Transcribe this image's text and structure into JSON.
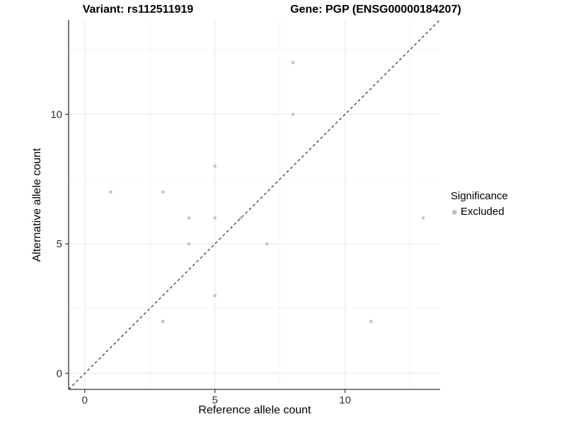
{
  "chart_data": {
    "type": "scatter",
    "title_left": "Variant: rs112511919",
    "title_right": "Gene: PGP (ENSG00000184207)",
    "xlabel": "Reference allele count",
    "ylabel": "Alternative allele count",
    "xlim": [
      -0.62,
      13.65
    ],
    "ylim": [
      -0.62,
      13.65
    ],
    "xticks": [
      0,
      5,
      10
    ],
    "yticks": [
      0,
      5,
      10
    ],
    "minor_ticks": [
      2.5,
      7.5,
      12.5
    ],
    "grid": true,
    "legend_position": "right",
    "identity_line": {
      "style": "dashed",
      "from": [
        -0.62,
        -0.62
      ],
      "to": [
        13.65,
        13.65
      ],
      "color": "#1a1a1a"
    },
    "series": [
      {
        "name": "Excluded",
        "color": "#c2c2c2",
        "points": [
          [
            1,
            7
          ],
          [
            3,
            2
          ],
          [
            3,
            7
          ],
          [
            4,
            5
          ],
          [
            4,
            6
          ],
          [
            5,
            3
          ],
          [
            5,
            6
          ],
          [
            5,
            8
          ],
          [
            6,
            6
          ],
          [
            7,
            5
          ],
          [
            8,
            10
          ],
          [
            8,
            12
          ],
          [
            11,
            2
          ],
          [
            13,
            6
          ]
        ]
      }
    ],
    "legend": {
      "title": "Significance",
      "entries": [
        {
          "label": "Excluded",
          "color": "#c2c2c2"
        }
      ]
    },
    "colors": {
      "grid_major": "#e9e9e9",
      "grid_minor": "#f4f4f4",
      "axis": "#333333",
      "tick_label": "#333333",
      "point": "#c2c2c2",
      "background": "#ffffff"
    }
  }
}
